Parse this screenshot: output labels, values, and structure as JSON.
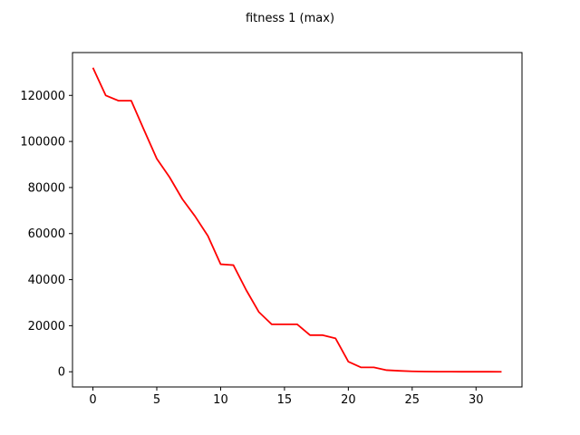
{
  "chart_data": {
    "type": "line",
    "title": "fitness 1 (max)",
    "xlabel": "",
    "ylabel": "",
    "xlim": [
      -1.6,
      33.6
    ],
    "ylim": [
      -6600,
      138600
    ],
    "grid": false,
    "legend": "none",
    "x_ticks": [
      0,
      5,
      10,
      15,
      20,
      25,
      30
    ],
    "y_ticks": [
      0,
      20000,
      40000,
      60000,
      80000,
      100000,
      120000
    ],
    "series": [
      {
        "color": "#ff0000",
        "x": [
          0,
          1,
          2,
          3,
          4,
          5,
          6,
          7,
          8,
          9,
          10,
          11,
          12,
          13,
          14,
          15,
          16,
          17,
          18,
          19,
          20,
          21,
          22,
          23,
          24,
          25,
          26,
          27,
          28,
          29,
          30,
          31,
          32
        ],
        "y": [
          132000,
          120000,
          117700,
          117700,
          105000,
          92500,
          84500,
          75000,
          67500,
          59000,
          46700,
          46300,
          35500,
          25900,
          20600,
          20600,
          20600,
          15900,
          15900,
          14500,
          4400,
          1900,
          1900,
          700,
          400,
          200,
          100,
          50,
          30,
          20,
          10,
          5,
          0
        ]
      }
    ]
  }
}
